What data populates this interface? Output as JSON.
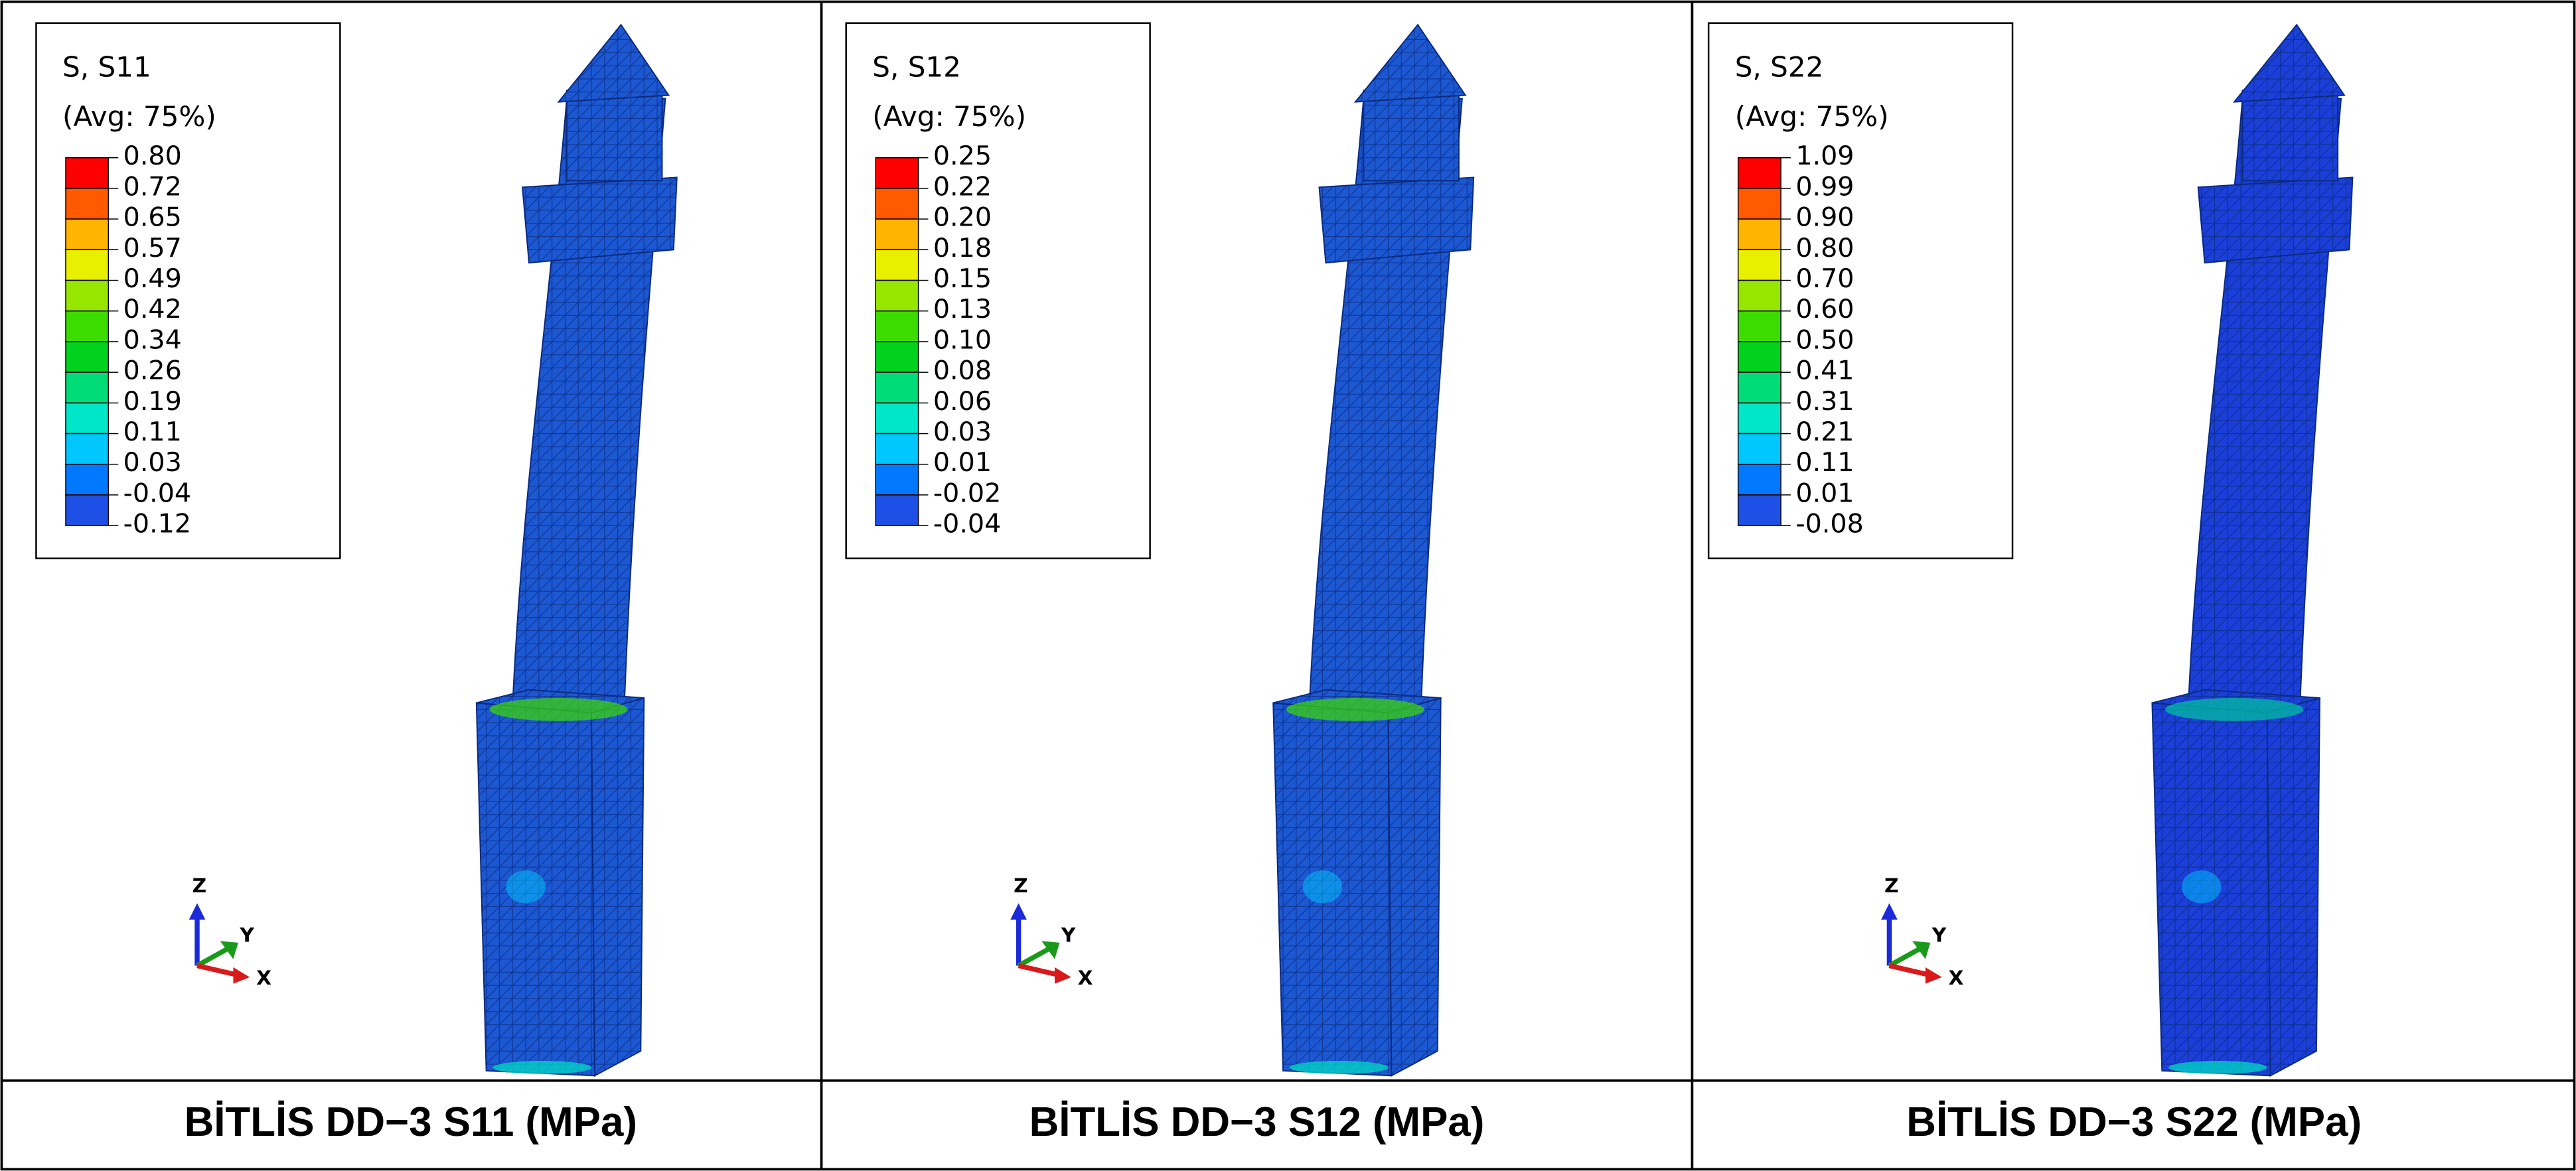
{
  "panels": [
    {
      "legend": {
        "title": "S, S11",
        "subtitle": "(Avg: 75%)",
        "labels": [
          "0.80",
          "0.72",
          "0.65",
          "0.57",
          "0.49",
          "0.42",
          "0.34",
          "0.26",
          "0.19",
          "0.11",
          "0.03",
          "-0.04",
          "-0.12"
        ]
      },
      "axes": {
        "z": "Z",
        "y": "Y",
        "x": "X"
      },
      "caption": "BİTLİS DD−3  S11 (MPa)"
    },
    {
      "legend": {
        "title": "S, S12",
        "subtitle": "(Avg: 75%)",
        "labels": [
          "0.25",
          "0.22",
          "0.20",
          "0.18",
          "0.15",
          "0.13",
          "0.10",
          "0.08",
          "0.06",
          "0.03",
          "0.01",
          "-0.02",
          "-0.04"
        ]
      },
      "axes": {
        "z": "Z",
        "y": "Y",
        "x": "X"
      },
      "caption": "BİTLİS DD−3  S12 (MPa)"
    },
    {
      "legend": {
        "title": "S, S22",
        "subtitle": "(Avg: 75%)",
        "labels": [
          "1.09",
          "0.99",
          "0.90",
          "0.80",
          "0.70",
          "0.60",
          "0.50",
          "0.41",
          "0.31",
          "0.21",
          "0.11",
          "0.01",
          "-0.08"
        ]
      },
      "axes": {
        "z": "Z",
        "y": "Y",
        "x": "X"
      },
      "caption": "BİTLİS DD−3  S22 (MPa)"
    }
  ]
}
